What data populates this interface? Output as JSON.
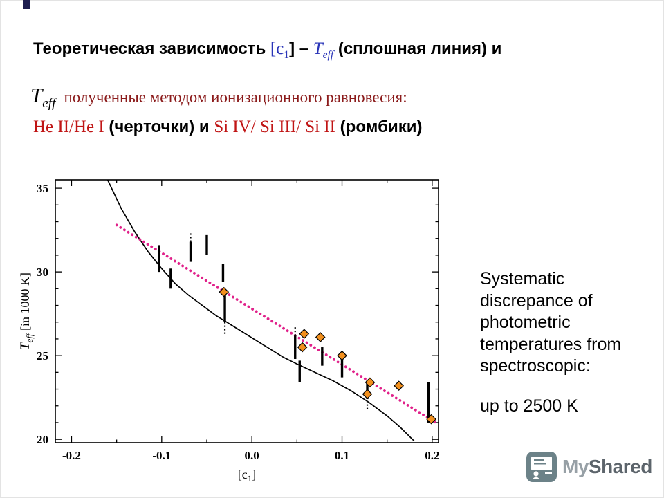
{
  "slide": {
    "title_line1": {
      "a": "Теоретическая зависимость ",
      "b": "[c",
      "b_sub": "1",
      "c": "] – ",
      "d": "T",
      "d_sub": "eff",
      "e": " (сплошная линия) и"
    },
    "title_line2": {
      "t": "T",
      "t_sub": "eff",
      "rest": "полученные методом ионизационного равновесия:"
    },
    "title_line3": {
      "he": "He II/He I",
      "a": " (черточки) и ",
      "si": "Si IV/ Si III/ Si II",
      "b": " (ромбики)"
    },
    "side_note": {
      "p1": "Systematic discrepance of photometric temperatures from spectroscopic:",
      "p2": "up to 2500 K"
    },
    "logo": {
      "my": "My",
      "shared": "Shared"
    },
    "colors": {
      "title_symbol_blue": "#2a35b8",
      "red_text": "#c01515",
      "line2_text": "#8b1b1b"
    }
  },
  "chart_data": {
    "type": "scatter",
    "title": "",
    "xlabel_parts": [
      "[c",
      "1",
      "]"
    ],
    "ylabel_parts": [
      "T",
      "eff",
      " [in 1000 K]"
    ],
    "xlim": [
      -0.218,
      0.207
    ],
    "ylim": [
      19.8,
      35.5
    ],
    "x_ticks": [
      -0.2,
      -0.1,
      0.0,
      0.1,
      0.2
    ],
    "x_tick_labels": [
      "-0.2",
      "-0.1",
      "0.0",
      "0.1",
      "0.2"
    ],
    "y_ticks": [
      20,
      25,
      30,
      35
    ],
    "y_tick_labels": [
      "20",
      "25",
      "30",
      "35"
    ],
    "x_minor_step": 0.05,
    "y_minor_step": 1,
    "grid": false,
    "legend": "none",
    "series": [
      {
        "name": "theoretical [c1]-Teff relation (solid line)",
        "render": "line",
        "style": "solid",
        "color": "#000000",
        "points": [
          [
            -0.16,
            35.5
          ],
          [
            -0.145,
            33.8
          ],
          [
            -0.13,
            32.4
          ],
          [
            -0.115,
            31.2
          ],
          [
            -0.1,
            30.2
          ],
          [
            -0.085,
            29.3
          ],
          [
            -0.07,
            28.6
          ],
          [
            -0.055,
            28.0
          ],
          [
            -0.04,
            27.4
          ],
          [
            -0.025,
            26.9
          ],
          [
            -0.01,
            26.4
          ],
          [
            0.005,
            25.9
          ],
          [
            0.02,
            25.4
          ],
          [
            0.035,
            24.9
          ],
          [
            0.05,
            24.5
          ],
          [
            0.07,
            24.0
          ],
          [
            0.09,
            23.5
          ],
          [
            0.11,
            22.9
          ],
          [
            0.13,
            22.2
          ],
          [
            0.15,
            21.4
          ],
          [
            0.165,
            20.7
          ],
          [
            0.18,
            19.9
          ]
        ]
      },
      {
        "name": "ionization-equilibrium trend (dotted line)",
        "render": "line",
        "style": "dotted",
        "color": "#e0218a",
        "points": [
          [
            -0.15,
            32.8
          ],
          [
            0.204,
            21.0
          ]
        ]
      },
      {
        "name": "He II/He I temperatures (dashes)",
        "render": "bars",
        "color": "#000000",
        "bars": [
          {
            "x": -0.103,
            "solid": [
              30.0,
              31.6
            ]
          },
          {
            "x": -0.09,
            "solid": [
              29.0,
              30.2
            ]
          },
          {
            "x": -0.068,
            "solid": [
              30.6,
              31.8
            ],
            "dotted": [
              31.8,
              32.4
            ]
          },
          {
            "x": -0.05,
            "solid": [
              31.0,
              32.2
            ]
          },
          {
            "x": -0.032,
            "solid": [
              29.4,
              30.5
            ]
          },
          {
            "x": -0.03,
            "solid": [
              27.0,
              28.6
            ],
            "dotted": [
              26.3,
              27.0
            ]
          },
          {
            "x": 0.048,
            "solid": [
              24.8,
              26.2
            ],
            "dotted": [
              26.2,
              26.8
            ]
          },
          {
            "x": 0.053,
            "solid": [
              23.4,
              24.7
            ]
          },
          {
            "x": 0.078,
            "solid": [
              24.4,
              25.5
            ]
          },
          {
            "x": 0.1,
            "solid": [
              23.7,
              25.1
            ]
          },
          {
            "x": 0.128,
            "solid": [
              22.4,
              23.5
            ],
            "dotted": [
              21.8,
              22.4
            ]
          },
          {
            "x": 0.196,
            "solid": [
              21.0,
              23.4
            ]
          }
        ]
      },
      {
        "name": "Si IV/Si III/Si II temperatures (diamonds)",
        "render": "markers",
        "marker": "diamond",
        "color": "#f2901e",
        "edge": "#000000",
        "points": [
          [
            -0.031,
            28.8
          ],
          [
            0.058,
            26.3
          ],
          [
            0.076,
            26.1
          ],
          [
            0.056,
            25.5
          ],
          [
            0.1,
            25.0
          ],
          [
            0.131,
            23.4
          ],
          [
            0.163,
            23.2
          ],
          [
            0.128,
            22.7
          ],
          [
            0.199,
            21.2
          ]
        ]
      }
    ]
  }
}
